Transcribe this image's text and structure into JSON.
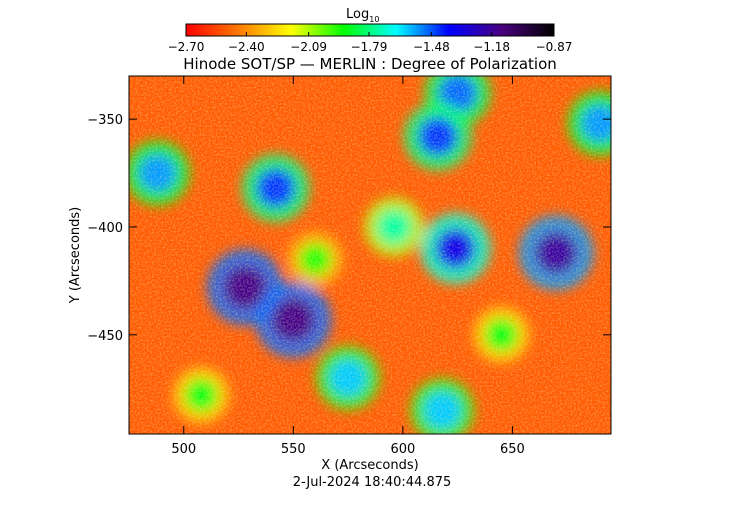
{
  "chart_data": {
    "type": "heatmap",
    "title": "Hinode SOT/SP — MERLIN : Degree of Polarization",
    "xlabel": "X (Arcseconds)",
    "ylabel": "Y (Arcseconds)",
    "timestamp": "2-Jul-2024 18:40:44.875",
    "xlim": [
      475,
      695
    ],
    "ylim": [
      -496,
      -330
    ],
    "x_ticks": [
      "500",
      "550",
      "600",
      "650"
    ],
    "x_tick_values": [
      500,
      550,
      600,
      650
    ],
    "y_ticks": [
      "−350",
      "−400",
      "−450"
    ],
    "y_tick_values": [
      -350,
      -400,
      -450
    ],
    "colorbar": {
      "label_main": "Log",
      "label_sub": "10",
      "ticks": [
        "−2.70",
        "−2.40",
        "−2.09",
        "−1.79",
        "−1.48",
        "−1.18",
        "−0.87"
      ],
      "tick_values": [
        -2.7,
        -2.4,
        -2.09,
        -1.79,
        -1.48,
        -1.18,
        -0.87
      ],
      "range": [
        -2.7,
        -0.87
      ],
      "colors": [
        "#ff0000",
        "#ff7a00",
        "#ffff00",
        "#00ff00",
        "#00ffff",
        "#0000ff",
        "#4a0080",
        "#000000"
      ]
    },
    "features": [
      {
        "name": "patch",
        "x": 528,
        "y": -428,
        "value": -1.15
      },
      {
        "name": "patch",
        "x": 550,
        "y": -443,
        "value": -1.15
      },
      {
        "name": "patch",
        "x": 670,
        "y": -412,
        "value": -1.2
      },
      {
        "name": "patch",
        "x": 624,
        "y": -410,
        "value": -1.35
      },
      {
        "name": "patch",
        "x": 542,
        "y": -382,
        "value": -1.45
      },
      {
        "name": "patch",
        "x": 616,
        "y": -358,
        "value": -1.45
      },
      {
        "name": "patch",
        "x": 625,
        "y": -338,
        "value": -1.5
      },
      {
        "name": "patch",
        "x": 488,
        "y": -375,
        "value": -1.55
      },
      {
        "name": "patch",
        "x": 575,
        "y": -470,
        "value": -1.6
      },
      {
        "name": "patch",
        "x": 618,
        "y": -485,
        "value": -1.6
      },
      {
        "name": "patch",
        "x": 690,
        "y": -352,
        "value": -1.55
      },
      {
        "name": "patch",
        "x": 596,
        "y": -400,
        "value": -1.75
      },
      {
        "name": "patch",
        "x": 508,
        "y": -478,
        "value": -1.9
      },
      {
        "name": "patch",
        "x": 645,
        "y": -450,
        "value": -1.9
      },
      {
        "name": "patch",
        "x": 560,
        "y": -415,
        "value": -1.95
      }
    ]
  }
}
